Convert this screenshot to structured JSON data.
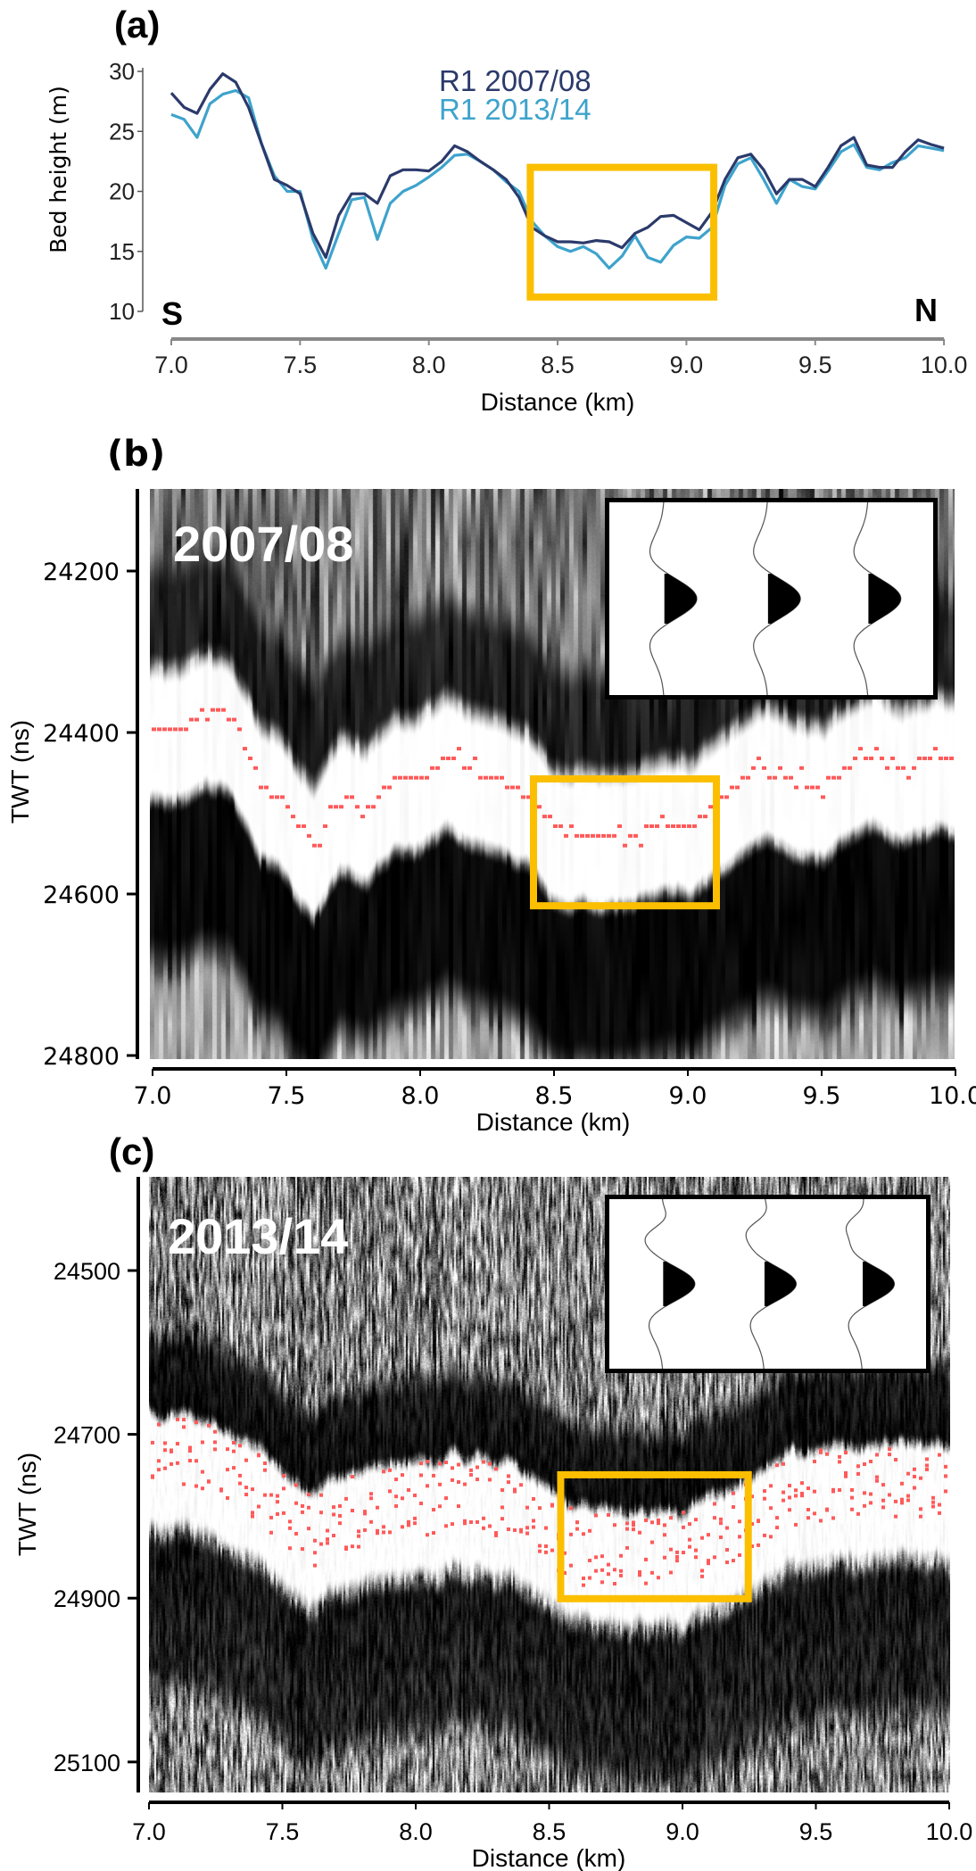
{
  "colors": {
    "series_2007": "#2b3a6b",
    "series_2013": "#3ea3cc",
    "highlight_box": "#fbbf00",
    "picks": "#ff5a5a"
  },
  "panels": {
    "a": {
      "label": "(a)",
      "south": "S",
      "north": "N"
    },
    "b": {
      "label": "(b)",
      "year": "2007/08"
    },
    "c": {
      "label": "(c)",
      "year": "2013/14"
    }
  },
  "chart_data": [
    {
      "type": "line",
      "panel": "(a)",
      "xlabel": "Distance (km)",
      "ylabel": "Bed height (m)",
      "xlim": [
        7.0,
        10.0
      ],
      "ylim": [
        10,
        30
      ],
      "xticks": [
        "7.0",
        "7.5",
        "8.0",
        "8.5",
        "9.0",
        "9.5",
        "10.0"
      ],
      "yticks": [
        "10",
        "15",
        "20",
        "25",
        "30"
      ],
      "grid": false,
      "legend_placement": "top-center",
      "x_start": 7.0,
      "x_step": 0.05,
      "series": [
        {
          "name": "R1 2007/08",
          "color": "#2b3a6b",
          "values": [
            28.2,
            27.0,
            26.5,
            28.5,
            29.8,
            29.1,
            27.0,
            24.0,
            21.0,
            20.5,
            19.8,
            16.5,
            14.5,
            18.0,
            19.8,
            19.8,
            19.0,
            21.3,
            21.8,
            21.8,
            21.7,
            22.5,
            23.8,
            23.3,
            22.5,
            21.8,
            21.0,
            19.5,
            17.0,
            16.3,
            15.8,
            15.8,
            15.7,
            15.9,
            15.8,
            15.3,
            16.5,
            17.0,
            17.9,
            18.0,
            17.4,
            16.8,
            18.3,
            21.0,
            22.8,
            23.1,
            21.8,
            19.8,
            21.0,
            21.0,
            20.4,
            22.0,
            23.8,
            24.5,
            22.2,
            22.0,
            22.0,
            23.3,
            24.3,
            23.9,
            23.6
          ]
        },
        {
          "name": "R1 2013/14",
          "color": "#3ea3cc",
          "values": [
            26.4,
            26.0,
            24.5,
            27.3,
            28.1,
            28.4,
            27.8,
            24.0,
            21.3,
            20.0,
            20.0,
            16.0,
            13.6,
            16.5,
            19.3,
            19.5,
            16.0,
            19.0,
            20.0,
            20.5,
            21.2,
            22.0,
            23.0,
            23.1,
            22.5,
            21.8,
            20.8,
            20.0,
            17.5,
            16.3,
            15.4,
            15.0,
            15.4,
            14.8,
            13.6,
            14.6,
            16.3,
            14.5,
            14.1,
            15.5,
            16.2,
            16.1,
            17.0,
            20.5,
            22.3,
            22.8,
            21.0,
            19.0,
            21.0,
            20.4,
            20.2,
            21.7,
            23.3,
            23.9,
            22.0,
            21.8,
            22.4,
            22.8,
            23.8,
            23.6,
            23.4
          ]
        }
      ],
      "highlight": {
        "x": [
          8.38,
          9.12
        ],
        "y": [
          10.9,
          22.3
        ]
      }
    },
    {
      "type": "heatmap",
      "panel": "(b)",
      "title": "2007/08",
      "xlabel": "Distance (km)",
      "ylabel": "TWT (ns)",
      "xlim": [
        7.0,
        10.0
      ],
      "ylim": [
        24800,
        24100
      ],
      "xticks": [
        "7.0",
        "7.5",
        "8.0",
        "8.5",
        "9.0",
        "9.5",
        "10.0"
      ],
      "yticks": [
        "24200",
        "24400",
        "24600",
        "24800"
      ],
      "picks": {
        "x_start": 7.0,
        "x_step": 0.1,
        "twt": [
          24390,
          24400,
          24370,
          24390,
          24465,
          24490,
          24545,
          24480,
          24495,
          24455,
          24455,
          24430,
          24450,
          24455,
          24480,
          24515,
          24525,
          24525,
          24525,
          24510,
          24515,
          24490,
          24455,
          24440,
          24460,
          24470,
          24440,
          24425,
          24445,
          24430,
          24430
        ]
      },
      "highlight": {
        "x": [
          8.41,
          9.12
        ],
        "y": [
          24453,
          24619
        ]
      },
      "inset": "three wavelet traces, single positive lobe"
    },
    {
      "type": "heatmap",
      "panel": "(c)",
      "title": "2013/14",
      "xlabel": "Distance (km)",
      "ylabel": "TWT (ns)",
      "xlim": [
        7.0,
        10.0
      ],
      "ylim": [
        25137,
        24385
      ],
      "xticks": [
        "7.0",
        "7.5",
        "8.0",
        "8.5",
        "9.0",
        "9.5",
        "10.0"
      ],
      "yticks": [
        "24500",
        "24700",
        "24900",
        "25100"
      ],
      "picks": {
        "x_start": 7.0,
        "x_step": 0.1,
        "twt": [
          24720,
          24725,
          24730,
          24745,
          24760,
          24790,
          24820,
          24805,
          24790,
          24785,
          24780,
          24775,
          24770,
          24780,
          24790,
          24815,
          24840,
          24840,
          24840,
          24840,
          24840,
          24825,
          24810,
          24790,
          24770,
          24765,
          24760,
          24760,
          24760,
          24760,
          24760
        ]
      },
      "highlight": {
        "x": [
          8.53,
          9.26
        ],
        "y": [
          24745,
          24905
        ]
      },
      "inset": "three wavelet traces, positive lobe with secondary wiggles"
    }
  ]
}
